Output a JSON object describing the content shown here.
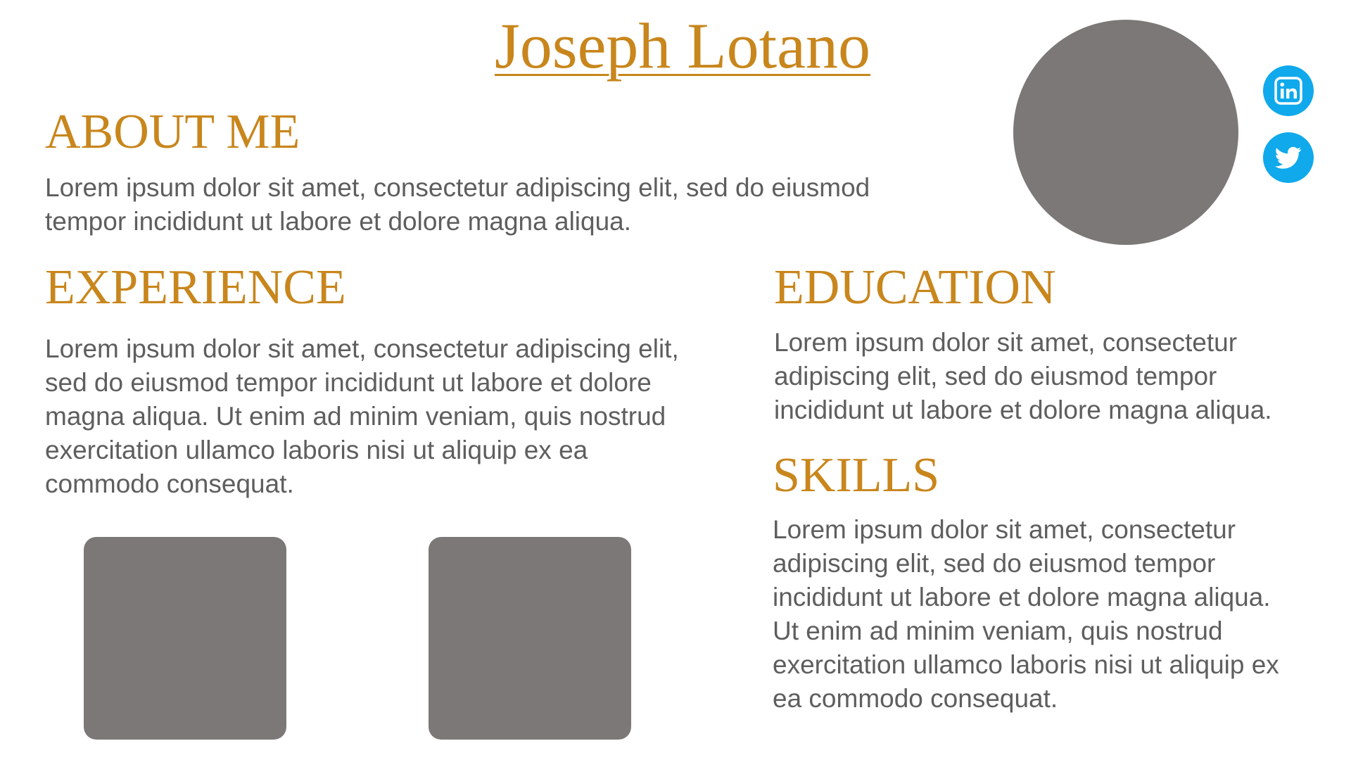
{
  "header": {
    "name": "Joseph Lotano"
  },
  "about": {
    "heading": "ABOUT ME",
    "lines": [
      "Lorem ipsum dolor sit amet, consectetur adipiscing elit, sed do eiusmod",
      "tempor incididunt ut labore et dolore magna aliqua."
    ]
  },
  "experience": {
    "heading": "EXPERIENCE",
    "lines": [
      "Lorem ipsum dolor sit amet, consectetur adipiscing elit,",
      "sed do eiusmod tempor incididunt ut labore et dolore",
      "magna aliqua. Ut enim ad minim veniam, quis nostrud",
      "exercitation ullamco laboris nisi ut aliquip ex ea",
      "commodo consequat."
    ]
  },
  "education": {
    "heading": "EDUCATION",
    "lines": [
      "Lorem ipsum dolor sit amet, consectetur",
      "adipiscing elit, sed do eiusmod tempor",
      "incididunt ut labore et dolore magna aliqua."
    ]
  },
  "skills": {
    "heading": "SKILLS",
    "lines": [
      "Lorem ipsum dolor sit amet, consectetur",
      "adipiscing elit, sed do eiusmod tempor",
      "incididunt ut labore et dolore magna aliqua.",
      "Ut enim ad minim veniam, quis nostrud",
      "exercitation ullamco laboris nisi ut aliquip ex",
      "ea commodo consequat."
    ]
  },
  "social": {
    "linkedin_icon": "linkedin-icon",
    "twitter_icon": "twitter-icon"
  },
  "colors": {
    "accent": "#C8861C",
    "body_text": "#5E5E5E",
    "placeholder": "#7C7878",
    "social": "#0FA9EC",
    "background": "#FFFFFF"
  }
}
